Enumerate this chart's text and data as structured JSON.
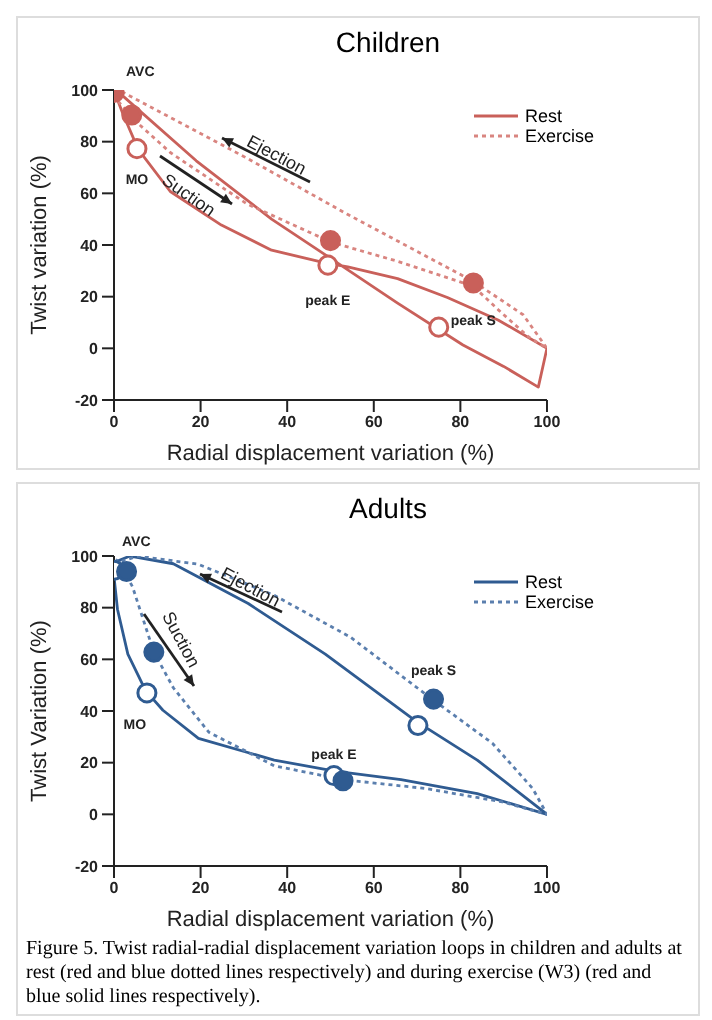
{
  "chart_data": [
    {
      "type": "line",
      "title": "Children",
      "xlabel": "Radial displacement variation (%)",
      "ylabel": "Twist variation (%)",
      "xlim": [
        0,
        100
      ],
      "xticks": [
        0,
        20,
        40,
        60,
        80,
        100
      ],
      "ylim": [
        -20,
        100
      ],
      "yticks": [
        -20,
        0,
        20,
        40,
        60,
        80,
        100
      ],
      "legend": "top right",
      "grid": false,
      "series": [
        {
          "name": "Rest",
          "line_style": "solid",
          "color": "#c9605a",
          "x": [
            0,
            1.5,
            19,
            36.4,
            49,
            65.5,
            80.6,
            90,
            98,
            100,
            88.7,
            77,
            65.5,
            54,
            49,
            36.4,
            24.8,
            13,
            5.6,
            2,
            0.3
          ],
          "values": [
            100,
            98.5,
            72.6,
            50,
            36,
            17.5,
            1.3,
            -7,
            -15,
            0,
            11,
            19.7,
            27,
            31.5,
            33,
            38,
            47.7,
            60.7,
            77,
            91,
            98.5
          ]
        },
        {
          "name": "Exercise",
          "line_style": "dotted",
          "color": "#d98580",
          "x": [
            0,
            1.5,
            30.6,
            53.8,
            82.9,
            94.5,
            100,
            95.7,
            88.7,
            83,
            65.5,
            50.3,
            30.6,
            13,
            4.4,
            0.3
          ],
          "values": [
            100,
            99.6,
            73.7,
            52,
            26,
            13,
            0,
            4.5,
            15,
            24,
            33.7,
            41,
            56,
            75.8,
            88.8,
            97
          ]
        },
        {
          "type": "scatter",
          "marker": "circle",
          "color": "#c9605a",
          "colors": [
            "#ffffff",
            "#ffffff",
            "#ffffff"
          ],
          "x": [
            5.3,
            49.4,
            75
          ],
          "values": [
            77.3,
            32.2,
            8.2
          ]
        },
        {
          "type": "scatter",
          "marker": "circle",
          "color": "#c9605a",
          "x": [
            0,
            4.1,
            50,
            83
          ],
          "values": [
            99,
            90.3,
            41.7,
            25.3
          ]
        }
      ],
      "annotations": [
        {
          "text": "AVC",
          "x": 0,
          "y": 99
        },
        {
          "text": "MO",
          "x": 5.3,
          "y": 77.3
        },
        "Ejection",
        "Suction",
        {
          "text": "peak E",
          "x": 49.4,
          "y": 32.2
        },
        {
          "text": "peak S",
          "x": 75,
          "y": 8.2
        }
      ]
    },
    {
      "type": "line",
      "title": "Adults",
      "xlabel": "Radial displacement variation (%)",
      "ylabel": "Twist Variation (%)",
      "xlim": [
        0,
        100
      ],
      "xticks": [
        0,
        20,
        40,
        60,
        80,
        100
      ],
      "ylim": [
        -20,
        100
      ],
      "yticks": [
        -20,
        0,
        20,
        40,
        60,
        80,
        100
      ],
      "legend": "top right",
      "grid": false,
      "series": [
        {
          "name": "Rest",
          "line_style": "solid",
          "color": "#2f5b91",
          "x": [
            0,
            0.8,
            3.7,
            13.7,
            31,
            48.8,
            69.8,
            83.9,
            100,
            83.9,
            66.3,
            51,
            37,
            19.5,
            11.3,
            7.3,
            3.2,
            0.8,
            0
          ],
          "values": [
            94,
            98,
            100,
            97,
            81.6,
            62,
            36,
            21,
            0,
            8,
            13.4,
            16.7,
            21,
            29.4,
            40.3,
            47.9,
            62,
            79.4,
            92
          ]
        },
        {
          "name": "Exercise",
          "line_style": "dotted",
          "color": "#5b7fae",
          "x": [
            0,
            5.5,
            19.5,
            37,
            54.6,
            73.3,
            87.4,
            96.7,
            100,
            89.7,
            72,
            52.9,
            37,
            21.9,
            13.7,
            9.2,
            4.3,
            0.8,
            0.2
          ],
          "values": [
            97,
            100,
            96.8,
            84.8,
            68.6,
            44.8,
            27.5,
            10,
            0,
            4.8,
            10,
            13.4,
            18.8,
            31.8,
            49,
            62.8,
            88,
            99,
            96.5
          ]
        },
        {
          "type": "scatter",
          "marker": "circle",
          "color": "#2f5b91",
          "colors": [
            "#ffffff",
            "#ffffff",
            "#ffffff",
            "#ffffff"
          ],
          "x": [
            0,
            7.6,
            50.8,
            70.2
          ],
          "values": [
            94.5,
            47,
            15,
            34.4
          ]
        },
        {
          "type": "scatter",
          "marker": "circle",
          "color": "#2f5b91",
          "x": [
            2.9,
            9.2,
            52.9,
            73.8
          ],
          "values": [
            94,
            62.8,
            13,
            44.6
          ]
        }
      ],
      "annotations": [
        {
          "text": "AVC",
          "x": 0,
          "y": 94.5
        },
        {
          "text": "MO",
          "x": 7.6,
          "y": 47
        },
        "Ejection",
        "Suction",
        {
          "text": "peak E",
          "x": 50.8,
          "y": 15
        },
        {
          "text": "peak S",
          "x": 73.8,
          "y": 44.6
        },
        "Figure 5. Twist radial-radial displacement variation loops in children and adults at rest (red and blue dotted lines respectively) and during exercise (W3) (red and blue solid lines respectively)."
      ]
    }
  ]
}
